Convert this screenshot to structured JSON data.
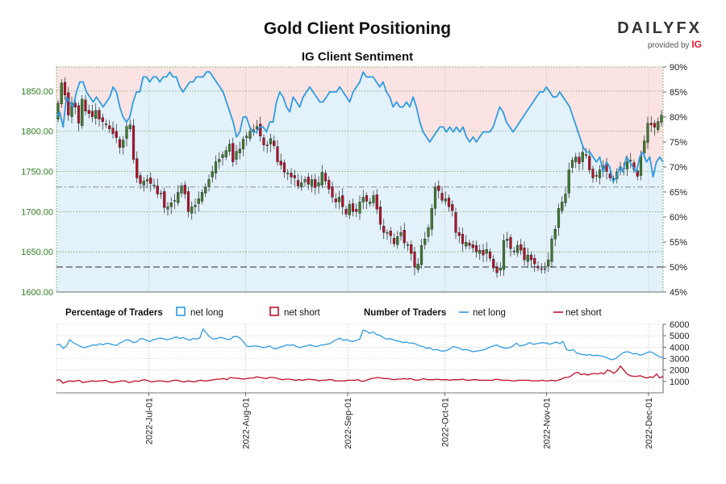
{
  "header": {
    "title": "Gold Client Positioning",
    "subtitle": "IG Client Sentiment"
  },
  "logo": {
    "word_left": "DAILY",
    "word_right": "FX",
    "provided_by": "provided by",
    "brand": "IG"
  },
  "legend": {
    "pct_title": "Percentage of Traders",
    "pct_long": "net long",
    "pct_short": "net short",
    "num_title": "Number of Traders",
    "num_long": "net long",
    "num_short": "net short"
  },
  "colors": {
    "long": "#2f9be0",
    "short": "#c0102a",
    "long_fill": "#e3f1fb",
    "short_fill": "#fbe3e4",
    "candle_up": "#3f7a2e",
    "candle_down": "#b3122a",
    "price_axis": "#2e7d1f"
  },
  "chart_data": [
    {
      "type": "candlestick",
      "name": "price",
      "ylim": [
        1600,
        1880
      ],
      "y_ticks": [
        "1600.00",
        "1650.00",
        "1700.00",
        "1750.00",
        "1800.00",
        "1850.00"
      ],
      "y_tick_values": [
        1600,
        1650,
        1700,
        1750,
        1800,
        1850
      ],
      "x_ticks": [
        "2022-Jul-01",
        "2022-Aug-01",
        "2022-Sep-01",
        "2022-Oct-01",
        "2022-Nov-01",
        "2022-Dec-01"
      ],
      "close": [
        1835,
        1860,
        1845,
        1820,
        1835,
        1830,
        1810,
        1840,
        1825,
        1822,
        1818,
        1826,
        1815,
        1812,
        1808,
        1803,
        1797,
        1792,
        1780,
        1789,
        1806,
        1808,
        1765,
        1742,
        1735,
        1738,
        1740,
        1735,
        1733,
        1722,
        1722,
        1705,
        1706,
        1711,
        1714,
        1724,
        1732,
        1722,
        1700,
        1706,
        1708,
        1716,
        1724,
        1730,
        1740,
        1750,
        1762,
        1765,
        1771,
        1776,
        1784,
        1762,
        1775,
        1778,
        1790,
        1794,
        1800,
        1802,
        1806,
        1794,
        1783,
        1782,
        1791,
        1782,
        1762,
        1758,
        1749,
        1748,
        1743,
        1742,
        1732,
        1736,
        1740,
        1734,
        1740,
        1730,
        1736,
        1749,
        1738,
        1728,
        1718,
        1712,
        1718,
        1706,
        1697,
        1709,
        1700,
        1700,
        1712,
        1718,
        1713,
        1712,
        1720,
        1703,
        1684,
        1674,
        1674,
        1670,
        1660,
        1669,
        1674,
        1661,
        1659,
        1648,
        1631,
        1635,
        1658,
        1666,
        1680,
        1704,
        1730,
        1726,
        1714,
        1716,
        1706,
        1701,
        1674,
        1670,
        1660,
        1662,
        1658,
        1655,
        1650,
        1652,
        1646,
        1653,
        1642,
        1630,
        1624,
        1630,
        1664,
        1666,
        1654,
        1650,
        1658,
        1652,
        1640,
        1646,
        1640,
        1635,
        1630,
        1628,
        1629,
        1640,
        1666,
        1678,
        1704,
        1712,
        1722,
        1752,
        1764,
        1768,
        1760,
        1774,
        1770,
        1752,
        1742,
        1744,
        1752,
        1757,
        1750,
        1742,
        1740,
        1749,
        1756,
        1753,
        1762,
        1764,
        1752,
        1744,
        1770,
        1788,
        1810,
        1808,
        1805,
        1812,
        1820
      ],
      "candles": []
    },
    {
      "type": "line",
      "name": "percentage",
      "ylim": [
        45,
        90
      ],
      "y_ticks": [
        "45%",
        "50%",
        "55%",
        "60%",
        "65%",
        "70%",
        "75%",
        "80%",
        "85%",
        "90%"
      ],
      "y_tick_values": [
        45,
        50,
        55,
        60,
        65,
        70,
        75,
        80,
        85,
        90
      ],
      "series": [
        {
          "name": "net long",
          "values": [
            80,
            81,
            78,
            84,
            83,
            82,
            85,
            87,
            87,
            85,
            84,
            83,
            84,
            83,
            82,
            83,
            84,
            86,
            85,
            82,
            80,
            79,
            80,
            83,
            85,
            85,
            88,
            88,
            87,
            88,
            88,
            87,
            88,
            88,
            89,
            88,
            88,
            86,
            85,
            86,
            87,
            87,
            88,
            88,
            88,
            89,
            89,
            88,
            87,
            86,
            85,
            83,
            81,
            79,
            76,
            77,
            80,
            80,
            78,
            77,
            77,
            78,
            78,
            77,
            79,
            79,
            83,
            85,
            84,
            82,
            81,
            84,
            83,
            82,
            84,
            85,
            86,
            85,
            84,
            83,
            83,
            84,
            85,
            85,
            85,
            86,
            85,
            84,
            83,
            85,
            86,
            87,
            89,
            88,
            88,
            88,
            87,
            86,
            87,
            85,
            84,
            82,
            83,
            82,
            82,
            83,
            82,
            84,
            82,
            79,
            77,
            76,
            75,
            76,
            77,
            78,
            78,
            77,
            78,
            77,
            78,
            77,
            78,
            76,
            75,
            76,
            75,
            76,
            77,
            77,
            77,
            78,
            80,
            82,
            81,
            79,
            78,
            77,
            78,
            79,
            80,
            81,
            82,
            83,
            84,
            85,
            85,
            86,
            85,
            84,
            84,
            85,
            84,
            83,
            82,
            80,
            78,
            76,
            74,
            73,
            73,
            72,
            71,
            72,
            69,
            71,
            70,
            67,
            68,
            70,
            69,
            72,
            71,
            70,
            69,
            72,
            73,
            71,
            72,
            68,
            71,
            72,
            71
          ]
        },
        {
          "name": "net short",
          "values": []
        }
      ],
      "reference_lines": [
        50,
        66
      ]
    },
    {
      "type": "line",
      "name": "number_of_traders",
      "ylim": [
        0,
        6000
      ],
      "y_ticks": [
        "1000",
        "2000",
        "3000",
        "4000",
        "5000",
        "6000"
      ],
      "y_tick_values": [
        1000,
        2000,
        3000,
        4000,
        5000,
        6000
      ],
      "series": [
        {
          "name": "net long",
          "values": [
            4200,
            4250,
            3900,
            4100,
            4650,
            4400,
            4250,
            4100,
            3950,
            4000,
            4100,
            4200,
            4150,
            4300,
            4200,
            4350,
            4300,
            4200,
            4150,
            4350,
            4500,
            4650,
            4600,
            4400,
            4450,
            4700,
            4750,
            4600,
            4500,
            4650,
            4700,
            4800,
            4750,
            4650,
            4700,
            4800,
            4900,
            4750,
            4850,
            4700,
            4600,
            4750,
            4700,
            4800,
            5600,
            5200,
            4900,
            4700,
            4750,
            4850,
            4800,
            4700,
            4650,
            4900,
            4950,
            4800,
            4500,
            4100,
            4050,
            4100,
            4100,
            4050,
            3950,
            4000,
            4100,
            3900,
            3850,
            4000,
            4050,
            4200,
            4150,
            4200,
            4050,
            3950,
            4050,
            4100,
            4200,
            4100,
            4050,
            4150,
            4200,
            4250,
            4300,
            4500,
            4650,
            4800,
            4600,
            4650,
            4550,
            4500,
            4600,
            4700,
            5500,
            5400,
            5200,
            5350,
            5100,
            5050,
            4850,
            4700,
            4750,
            4650,
            4550,
            4500,
            4400,
            4450,
            4350,
            4350,
            4250,
            4100,
            4050,
            3900,
            3950,
            3750,
            3800,
            3700,
            3650,
            3700,
            3850,
            4050,
            4000,
            3900,
            3750,
            3800,
            3700,
            3600,
            3650,
            3700,
            3750,
            3850,
            4000,
            4100,
            4200,
            4050,
            3950,
            3900,
            3950,
            4100,
            4350,
            4100,
            4150,
            4250,
            4400,
            4250,
            4300,
            4350,
            4400,
            4350,
            4250,
            4350,
            4450,
            4300,
            4500,
            3800,
            3700,
            3800,
            3500,
            3400,
            3350,
            3300,
            3350,
            3250,
            3300,
            3250,
            3200,
            3100,
            2950,
            2900,
            3050,
            3300,
            3500,
            3600,
            3550,
            3400,
            3450,
            3300,
            3350,
            3500,
            3600,
            3500,
            3300,
            3150,
            3100
          ]
        },
        {
          "name": "net short",
          "values": [
            1100,
            1150,
            850,
            950,
            1050,
            1000,
            1050,
            1100,
            900,
            950,
            1000,
            1050,
            1000,
            1050,
            1050,
            1100,
            950,
            900,
            950,
            1000,
            1050,
            1050,
            900,
            950,
            1050,
            1000,
            1100,
            1150,
            1050,
            950,
            1000,
            1050,
            1050,
            1000,
            950,
            1050,
            1100,
            1100,
            1000,
            950,
            1050,
            1000,
            950,
            1050,
            1100,
            1050,
            1050,
            1100,
            1150,
            1200,
            1200,
            1250,
            1150,
            1350,
            1300,
            1300,
            1250,
            1200,
            1250,
            1300,
            1300,
            1400,
            1350,
            1300,
            1250,
            1350,
            1350,
            1300,
            1200,
            1150,
            1200,
            1200,
            1150,
            1100,
            1150,
            1100,
            1150,
            1200,
            1150,
            1150,
            1050,
            1100,
            1100,
            1150,
            1150,
            1050,
            1050,
            1050,
            1050,
            1100,
            1100,
            1100,
            1150,
            1000,
            1050,
            1150,
            1250,
            1300,
            1350,
            1300,
            1250,
            1250,
            1200,
            1150,
            1200,
            1200,
            1250,
            1200,
            1250,
            1150,
            1100,
            1150,
            1250,
            1150,
            1150,
            1150,
            1200,
            1150,
            1150,
            1150,
            1100,
            1150,
            1150,
            1150,
            1200,
            1100,
            1100,
            1150,
            1150,
            1100,
            1100,
            1100,
            1100,
            1100,
            1200,
            1150,
            1100,
            1100,
            1100,
            1050,
            1050,
            1100,
            1100,
            1100,
            1100,
            1050,
            1050,
            1050,
            1100,
            1050,
            1050,
            1100,
            1050,
            1100,
            1200,
            1350,
            1350,
            1500,
            1700,
            1800,
            1600,
            1650,
            1550,
            1650,
            1700,
            1650,
            1750,
            1650,
            2000,
            1900,
            1700,
            1950,
            2350,
            2000,
            1650,
            1500,
            1450,
            1450,
            1500,
            1400,
            1300,
            1400,
            1350,
            1650,
            1300,
            1450
          ]
        }
      ]
    }
  ]
}
